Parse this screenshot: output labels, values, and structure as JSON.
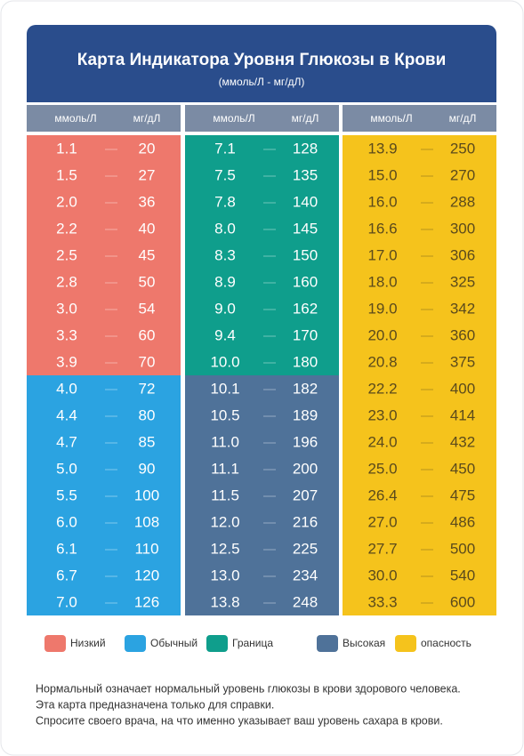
{
  "header": {
    "title": "Карта Индикатора Уровня Глюкозы в Крови",
    "subtitle": "(ммоль/Л - мг/дЛ)"
  },
  "table": {
    "groups": [
      {
        "headers": [
          "ммоль/Л",
          "мг/дЛ"
        ],
        "blocks": [
          {
            "color": "#ee786c",
            "text_color": "#ffffff",
            "rows": [
              [
                "1.1",
                "20"
              ],
              [
                "1.5",
                "27"
              ],
              [
                "2.0",
                "36"
              ],
              [
                "2.2",
                "40"
              ],
              [
                "2.5",
                "45"
              ],
              [
                "2.8",
                "50"
              ],
              [
                "3.0",
                "54"
              ],
              [
                "3.3",
                "60"
              ],
              [
                "3.9",
                "70"
              ]
            ]
          },
          {
            "color": "#2ba3e1",
            "text_color": "#ffffff",
            "rows": [
              [
                "4.0",
                "72"
              ],
              [
                "4.4",
                "80"
              ],
              [
                "4.7",
                "85"
              ],
              [
                "5.0",
                "90"
              ],
              [
                "5.5",
                "100"
              ],
              [
                "6.0",
                "108"
              ],
              [
                "6.1",
                "110"
              ],
              [
                "6.7",
                "120"
              ],
              [
                "7.0",
                "126"
              ]
            ]
          }
        ]
      },
      {
        "headers": [
          "ммоль/Л",
          "мг/дЛ"
        ],
        "blocks": [
          {
            "color": "#0f9e8c",
            "text_color": "#ffffff",
            "rows": [
              [
                "7.1",
                "128"
              ],
              [
                "7.5",
                "135"
              ],
              [
                "7.8",
                "140"
              ],
              [
                "8.0",
                "145"
              ],
              [
                "8.3",
                "150"
              ],
              [
                "8.9",
                "160"
              ],
              [
                "9.0",
                "162"
              ],
              [
                "9.4",
                "170"
              ],
              [
                "10.0",
                "180"
              ]
            ]
          },
          {
            "color": "#4f7299",
            "text_color": "#ffffff",
            "rows": [
              [
                "10.1",
                "182"
              ],
              [
                "10.5",
                "189"
              ],
              [
                "11.0",
                "196"
              ],
              [
                "11.1",
                "200"
              ],
              [
                "11.5",
                "207"
              ],
              [
                "12.0",
                "216"
              ],
              [
                "12.5",
                "225"
              ],
              [
                "13.0",
                "234"
              ],
              [
                "13.8",
                "248"
              ]
            ]
          }
        ]
      },
      {
        "headers": [
          "ммоль/Л",
          "мг/дЛ"
        ],
        "blocks": [
          {
            "color": "#f5c31c",
            "text_color": "#5b4a1c",
            "rows": [
              [
                "13.9",
                "250"
              ],
              [
                "15.0",
                "270"
              ],
              [
                "16.0",
                "288"
              ],
              [
                "16.6",
                "300"
              ],
              [
                "17.0",
                "306"
              ],
              [
                "18.0",
                "325"
              ],
              [
                "19.0",
                "342"
              ],
              [
                "20.0",
                "360"
              ],
              [
                "20.8",
                "375"
              ],
              [
                "22.2",
                "400"
              ],
              [
                "23.0",
                "414"
              ],
              [
                "24.0",
                "432"
              ],
              [
                "25.0",
                "450"
              ],
              [
                "26.4",
                "475"
              ],
              [
                "27.0",
                "486"
              ],
              [
                "27.7",
                "500"
              ],
              [
                "30.0",
                "540"
              ],
              [
                "33.3",
                "600"
              ]
            ]
          }
        ]
      }
    ]
  },
  "legend": [
    {
      "label": "Низкий",
      "color": "#ee786c"
    },
    {
      "label": "Обычный",
      "color": "#2ba3e1"
    },
    {
      "label": "Граница",
      "color": "#0f9e8c"
    },
    {
      "label": "Высокая",
      "color": "#4f7299"
    },
    {
      "label": "опасность",
      "color": "#f5c31c"
    }
  ],
  "footer": [
    "Нормальный означает нормальный уровень глюкозы в крови здорового человека.",
    "Эта карта предназначена только для справки.",
    "Спросите своего врача, на что именно указывает ваш уровень сахара в крови."
  ]
}
